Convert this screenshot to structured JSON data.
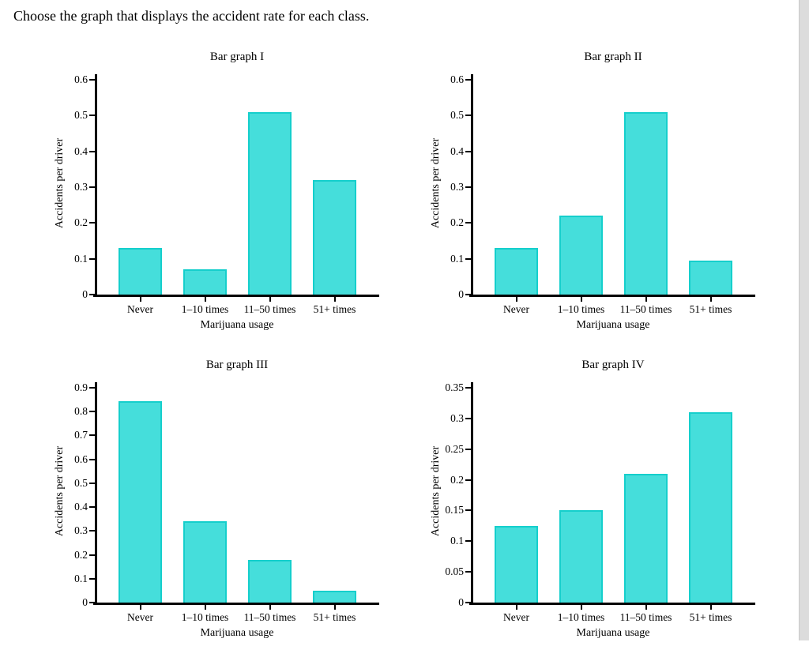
{
  "question": "Choose the graph that displays the accident rate for each class.",
  "colors": {
    "bar_fill": "#45dedb",
    "bar_border": "#15cfcc",
    "axis": "#000000",
    "scrollbar_track": "#dcdcdc"
  },
  "chart_data": [
    {
      "type": "bar",
      "title": "Bar graph I",
      "categories": [
        "Never",
        "1–10 times",
        "11–50 times",
        "51+ times"
      ],
      "values": [
        0.13,
        0.07,
        0.51,
        0.32
      ],
      "xlabel": "Marijuana usage",
      "ylabel": "Accidents per driver",
      "ylim": [
        0,
        0.63
      ],
      "yticks": [
        0,
        0.1,
        0.2,
        0.3,
        0.4,
        0.5,
        0.6
      ],
      "ytick_labels": [
        "0",
        "0.1",
        "0.2",
        "0.3",
        "0.4",
        "0.5",
        "0.6"
      ],
      "grid": false,
      "legend": "none"
    },
    {
      "type": "bar",
      "title": "Bar graph II",
      "categories": [
        "Never",
        "1–10 times",
        "11–50 times",
        "51+ times"
      ],
      "values": [
        0.13,
        0.22,
        0.51,
        0.095
      ],
      "xlabel": "Marijuana usage",
      "ylabel": "Accidents per driver",
      "ylim": [
        0,
        0.63
      ],
      "yticks": [
        0,
        0.1,
        0.2,
        0.3,
        0.4,
        0.5,
        0.6
      ],
      "ytick_labels": [
        "0",
        "0.1",
        "0.2",
        "0.3",
        "0.4",
        "0.5",
        "0.6"
      ],
      "grid": false,
      "legend": "none"
    },
    {
      "type": "bar",
      "title": "Bar graph III",
      "categories": [
        "Never",
        "1–10 times",
        "11–50 times",
        "51+ times"
      ],
      "values": [
        0.845,
        0.34,
        0.18,
        0.05
      ],
      "xlabel": "Marijuana usage",
      "ylabel": "Accidents per driver",
      "ylim": [
        0,
        0.94
      ],
      "yticks": [
        0,
        0.1,
        0.2,
        0.3,
        0.4,
        0.5,
        0.6,
        0.7,
        0.8,
        0.9
      ],
      "ytick_labels": [
        "0",
        "0.1",
        "0.2",
        "0.3",
        "0.4",
        "0.5",
        "0.6",
        "0.7",
        "0.8",
        "0.9"
      ],
      "grid": false,
      "legend": "none"
    },
    {
      "type": "bar",
      "title": "Bar graph IV",
      "categories": [
        "Never",
        "1–10 times",
        "11–50 times",
        "51+ times"
      ],
      "values": [
        0.125,
        0.15,
        0.21,
        0.31
      ],
      "xlabel": "Marijuana usage",
      "ylabel": "Accidents per driver",
      "ylim": [
        0,
        0.365
      ],
      "yticks": [
        0,
        0.05,
        0.1,
        0.15,
        0.2,
        0.25,
        0.3,
        0.35
      ],
      "ytick_labels": [
        "0",
        "0.05",
        "0.1",
        "0.15",
        "0.2",
        "0.25",
        "0.3",
        "0.35"
      ],
      "grid": false,
      "legend": "none"
    }
  ]
}
